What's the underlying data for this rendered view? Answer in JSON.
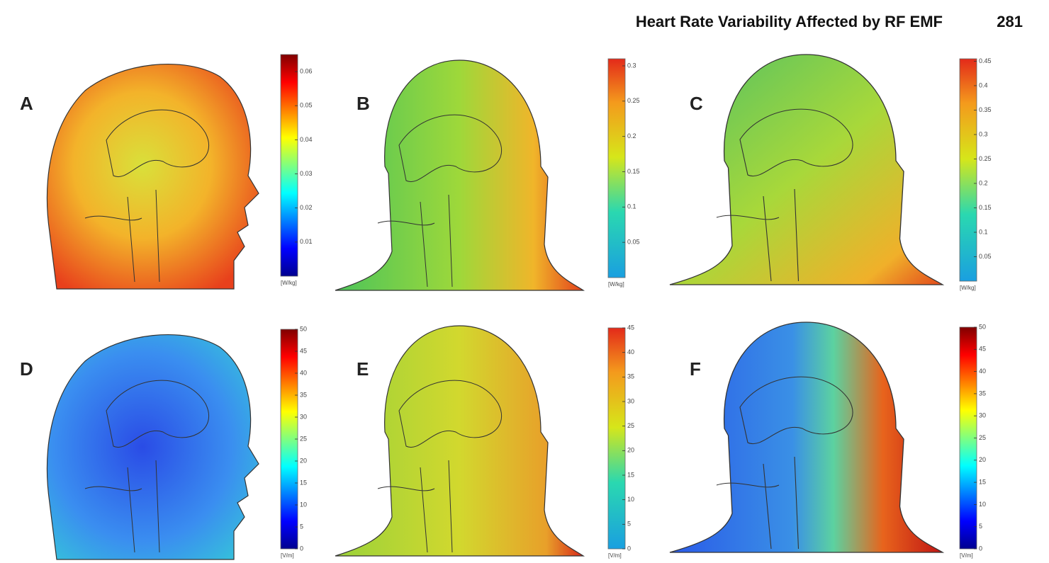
{
  "header": {
    "title": "Heart Rate Variability Affected by RF EMF",
    "page": "281"
  },
  "panels": [
    {
      "label": "A",
      "colorbar": {
        "range": [
          0,
          0.065
        ],
        "ticks": [
          0.01,
          0.02,
          0.03,
          0.04,
          0.05,
          0.06
        ],
        "unit": "[W/kg]"
      }
    },
    {
      "label": "B",
      "colorbar": {
        "range": [
          0,
          0.31
        ],
        "ticks": [
          0.05,
          0.1,
          0.15,
          0.2,
          0.25,
          0.3
        ],
        "unit": "[W/kg]"
      }
    },
    {
      "label": "C",
      "colorbar": {
        "range": [
          0,
          0.455
        ],
        "ticks": [
          0.05,
          0.1,
          0.15,
          0.2,
          0.25,
          0.3,
          0.35,
          0.4,
          0.45
        ],
        "unit": "[W/kg]"
      }
    },
    {
      "label": "D",
      "colorbar": {
        "range": [
          0,
          50
        ],
        "ticks": [
          0,
          5,
          10,
          15,
          20,
          25,
          30,
          35,
          40,
          45,
          50
        ],
        "unit": "[V/m]"
      }
    },
    {
      "label": "E",
      "colorbar": {
        "range": [
          0,
          45
        ],
        "ticks": [
          0,
          5,
          10,
          15,
          20,
          25,
          30,
          35,
          40,
          45
        ],
        "unit": "[V/m]"
      }
    },
    {
      "label": "F",
      "colorbar": {
        "range": [
          0,
          50
        ],
        "ticks": [
          0,
          5,
          10,
          15,
          20,
          25,
          30,
          35,
          40,
          45,
          50
        ],
        "unit": "[V/m]"
      }
    }
  ]
}
